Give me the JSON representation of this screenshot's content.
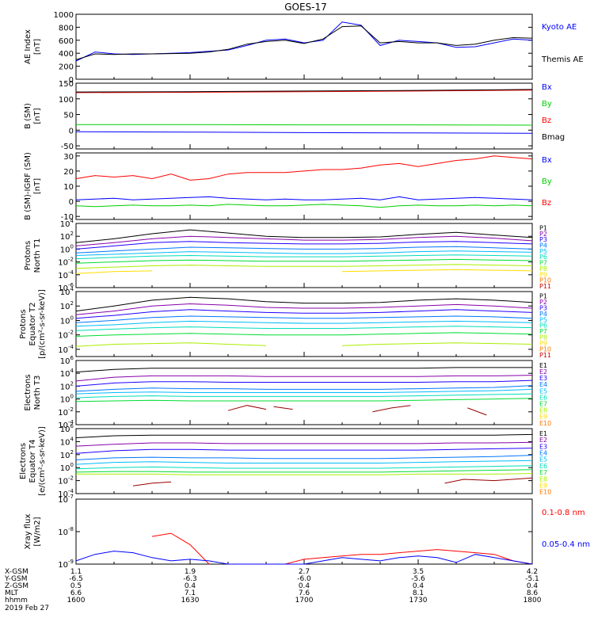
{
  "title": "GOES-17",
  "date": "2019 Feb 27",
  "footer": {
    "row_labels": [
      "X-GSM",
      "Y-GSM",
      "Z-GSM",
      "MLT",
      "hhmm"
    ],
    "columns": [
      [
        "1.1",
        "-6.5",
        "0.5",
        "6.6",
        "1600"
      ],
      [
        "1.9",
        "-6.3",
        "0.4",
        "7.1",
        "1630"
      ],
      [
        "2.7",
        "-6.0",
        "0.4",
        "7.6",
        "1700"
      ],
      [
        "3.5",
        "-5.6",
        "0.4",
        "8.1",
        "1730"
      ],
      [
        "4.2",
        "-5.1",
        "0.4",
        "8.6",
        "1800"
      ]
    ]
  },
  "colors": {
    "black": "#000000",
    "blue": "#0000ff",
    "green": "#00d000",
    "red": "#ff0000",
    "darkred": "#990000",
    "channels": [
      "#000000",
      "#8800aa",
      "#2200ff",
      "#0077ff",
      "#00bbff",
      "#00ddbb",
      "#00dd33",
      "#aaee00",
      "#ffdd00",
      "#ff7700",
      "#cc0000"
    ]
  },
  "chart_data": [
    {
      "type": "line",
      "ylabel": "AE Index\n[nT]",
      "ylim": [
        0,
        1000
      ],
      "yticks": [
        "0",
        "200",
        "400",
        "600",
        "800",
        "1000"
      ],
      "x": [
        1600,
        1605,
        1610,
        1615,
        1620,
        1625,
        1630,
        1635,
        1640,
        1645,
        1650,
        1655,
        1700,
        1705,
        1710,
        1715,
        1720,
        1725,
        1730,
        1735,
        1740,
        1745,
        1750,
        1755,
        1800
      ],
      "series": [
        {
          "name": "Kyoto AE",
          "color": "blue",
          "values": [
            280,
            420,
            390,
            380,
            390,
            400,
            410,
            430,
            450,
            520,
            600,
            620,
            560,
            600,
            880,
            830,
            520,
            600,
            580,
            560,
            490,
            500,
            560,
            620,
            600
          ]
        },
        {
          "name": "Themis AE",
          "color": "black",
          "values": [
            300,
            390,
            380,
            390,
            390,
            395,
            400,
            420,
            460,
            540,
            580,
            600,
            550,
            620,
            810,
            820,
            560,
            580,
            560,
            560,
            520,
            540,
            600,
            640,
            630
          ]
        }
      ]
    },
    {
      "type": "line",
      "ylabel": "B (SM)\n[nT]",
      "ylim": [
        -60,
        150
      ],
      "yticks": [
        "-50",
        "0",
        "50",
        "100",
        "150"
      ],
      "x": [
        1600,
        1630,
        1700,
        1730,
        1800
      ],
      "series": [
        {
          "name": "Bx",
          "color": "blue",
          "values": [
            -5,
            -6,
            -8,
            -9,
            -10
          ]
        },
        {
          "name": "By",
          "color": "green",
          "values": [
            18,
            18,
            17,
            17,
            16
          ]
        },
        {
          "name": "Bz",
          "color": "red",
          "values": [
            120,
            121,
            123,
            125,
            128
          ]
        },
        {
          "name": "Bmag",
          "color": "black",
          "values": [
            122,
            123,
            125,
            127,
            130
          ]
        }
      ]
    },
    {
      "type": "line",
      "ylabel": "B (SM)-IGRF (SM)\n[nT]",
      "ylim": [
        -12,
        32
      ],
      "yticks": [
        "-10",
        "0",
        "10",
        "20",
        "30"
      ],
      "x": [
        1600,
        1605,
        1610,
        1615,
        1620,
        1625,
        1630,
        1635,
        1640,
        1645,
        1650,
        1655,
        1700,
        1705,
        1710,
        1715,
        1720,
        1725,
        1730,
        1735,
        1740,
        1745,
        1750,
        1755,
        1800
      ],
      "series": [
        {
          "name": "Bx",
          "color": "blue",
          "values": [
            1,
            1.5,
            2,
            1,
            1.5,
            2,
            2.5,
            3,
            2,
            1.5,
            1,
            1.5,
            1,
            1,
            1.5,
            2,
            1,
            3,
            1,
            1.5,
            2,
            2.5,
            2,
            1.5,
            1
          ]
        },
        {
          "name": "By",
          "color": "green",
          "values": [
            -3,
            -3.5,
            -3,
            -2.5,
            -3,
            -3,
            -2.5,
            -3,
            -2,
            -2.5,
            -3,
            -3,
            -2.5,
            -2,
            -2.5,
            -3,
            -4,
            -3,
            -2.5,
            -3,
            -3,
            -2.5,
            -3,
            -2.5,
            -3
          ]
        },
        {
          "name": "Bz",
          "color": "red",
          "values": [
            15,
            17,
            16,
            17,
            15,
            18,
            14,
            15,
            18,
            19,
            19,
            19,
            20,
            21,
            21,
            22,
            24,
            25,
            23,
            25,
            27,
            28,
            30,
            29,
            28
          ]
        }
      ]
    },
    {
      "type": "line",
      "log": true,
      "ylabel": "Protons\nNorth T1",
      "ylim_exp": [
        -6,
        4
      ],
      "ytick_exps": [
        -6,
        -4,
        -2,
        0,
        2,
        4
      ],
      "x": [
        1600,
        1610,
        1620,
        1630,
        1640,
        1650,
        1700,
        1710,
        1720,
        1730,
        1740,
        1750,
        1800
      ],
      "legend": [
        "P1",
        "P2",
        "P3",
        "P4",
        "P5",
        "P6",
        "P7",
        "P8",
        "P9",
        "P10",
        "P11"
      ],
      "series_log": [
        [
          1.0,
          1.6,
          2.4,
          3.0,
          2.5,
          2.0,
          1.8,
          1.8,
          1.9,
          2.3,
          2.6,
          2.2,
          1.8
        ],
        [
          0.5,
          1.0,
          1.6,
          2.0,
          1.8,
          1.6,
          1.4,
          1.4,
          1.5,
          1.8,
          2.0,
          1.7,
          1.3
        ],
        [
          0.0,
          0.5,
          1.0,
          1.2,
          1.0,
          0.9,
          0.8,
          0.8,
          0.9,
          1.1,
          1.2,
          1.0,
          0.8
        ],
        [
          -0.6,
          -0.3,
          0.0,
          0.3,
          0.2,
          0.1,
          0.0,
          0.0,
          0.1,
          0.3,
          0.4,
          0.2,
          0.0
        ],
        [
          -1.0,
          -0.8,
          -0.6,
          -0.4,
          -0.5,
          -0.6,
          -0.7,
          -0.7,
          -0.6,
          -0.4,
          -0.3,
          -0.4,
          -0.5
        ],
        [
          -1.5,
          -1.3,
          -1.1,
          -1.0,
          -1.1,
          -1.2,
          -1.2,
          -1.2,
          -1.1,
          -1.0,
          -0.9,
          -1.0,
          -1.1
        ],
        [
          -2.2,
          -2.0,
          -1.8,
          -1.7,
          -1.8,
          -1.9,
          -1.9,
          -1.9,
          -1.8,
          -1.7,
          -1.6,
          -1.7,
          -1.8
        ],
        [
          -3.0,
          -2.8,
          -2.6,
          -2.5,
          -2.6,
          -2.7,
          -2.7,
          -2.7,
          -2.6,
          -2.5,
          -2.4,
          -2.5,
          -2.6
        ],
        [
          -3.8,
          -3.5,
          -3.4,
          null,
          null,
          null,
          null,
          -3.5,
          -3.4,
          -3.3,
          -3.2,
          -3.3,
          -3.4
        ]
      ]
    },
    {
      "type": "line",
      "log": true,
      "ylabel": "Protons\nEquator T2\n[p/(cm²-s-sr-keV)]",
      "ylim_exp": [
        -5,
        4
      ],
      "ytick_exps": [
        -4,
        -2,
        0,
        2,
        4
      ],
      "x": [
        1600,
        1610,
        1620,
        1630,
        1640,
        1650,
        1700,
        1710,
        1720,
        1730,
        1740,
        1750,
        1800
      ],
      "legend": [
        "P1",
        "P2",
        "P3",
        "P4",
        "P5",
        "P6",
        "P7",
        "P8",
        "P9",
        "P10",
        "P11"
      ],
      "series_log": [
        [
          1.3,
          2.0,
          2.8,
          3.2,
          3.0,
          2.6,
          2.4,
          2.4,
          2.5,
          2.8,
          3.0,
          2.8,
          2.5
        ],
        [
          0.8,
          1.3,
          2.0,
          2.3,
          2.1,
          1.8,
          1.7,
          1.7,
          1.8,
          2.0,
          2.2,
          2.0,
          1.7
        ],
        [
          0.3,
          0.7,
          1.2,
          1.5,
          1.3,
          1.1,
          1.0,
          1.0,
          1.1,
          1.3,
          1.5,
          1.3,
          1.1
        ],
        [
          -0.3,
          0.0,
          0.4,
          0.6,
          0.5,
          0.4,
          0.3,
          0.3,
          0.4,
          0.5,
          0.6,
          0.5,
          0.3
        ],
        [
          -0.8,
          -0.6,
          -0.3,
          -0.1,
          -0.2,
          -0.3,
          -0.4,
          -0.4,
          -0.3,
          -0.2,
          -0.1,
          -0.2,
          -0.3
        ],
        [
          -1.4,
          -1.2,
          -1.0,
          -0.9,
          -1.0,
          -1.1,
          -1.1,
          -1.1,
          -1.0,
          -0.9,
          -0.8,
          -0.9,
          -1.0
        ],
        [
          -2.2,
          -2.0,
          -1.9,
          -1.8,
          -1.9,
          -2.0,
          -2.0,
          -2.0,
          -1.9,
          -1.8,
          -1.7,
          -1.8,
          -1.9
        ],
        [
          -3.6,
          -3.3,
          -3.2,
          -3.1,
          -3.3,
          -3.5,
          null,
          -3.5,
          -3.3,
          -3.2,
          -3.1,
          -3.2,
          -3.3
        ]
      ]
    },
    {
      "type": "line",
      "log": true,
      "ylabel": "Electrons\nNorth T3",
      "ylim_exp": [
        -4,
        6
      ],
      "ytick_exps": [
        -4,
        -2,
        0,
        2,
        4,
        6
      ],
      "x": [
        1600,
        1610,
        1620,
        1630,
        1640,
        1650,
        1700,
        1710,
        1720,
        1730,
        1740,
        1750,
        1800
      ],
      "legend": [
        "E1",
        "E2",
        "E3",
        "E4",
        "E5",
        "E6",
        "E7",
        "E8",
        "E9",
        "E10"
      ],
      "series_log": [
        [
          4.2,
          4.6,
          4.8,
          4.8,
          4.8,
          4.8,
          4.8,
          4.8,
          4.8,
          4.8,
          4.9,
          4.9,
          4.9
        ],
        [
          2.8,
          3.4,
          3.6,
          3.6,
          3.6,
          3.5,
          3.5,
          3.5,
          3.5,
          3.5,
          3.6,
          3.6,
          3.7
        ],
        [
          2.0,
          2.5,
          2.7,
          2.7,
          2.6,
          2.6,
          2.6,
          2.6,
          2.6,
          2.6,
          2.7,
          2.7,
          2.9
        ],
        [
          1.2,
          1.5,
          1.7,
          1.6,
          1.6,
          1.5,
          1.5,
          1.5,
          1.5,
          1.6,
          1.7,
          1.8,
          2.1
        ],
        [
          0.8,
          1.0,
          1.1,
          1.0,
          1.0,
          1.0,
          1.0,
          1.0,
          1.0,
          1.1,
          1.2,
          1.3,
          1.5
        ],
        [
          0.2,
          0.4,
          0.5,
          0.4,
          0.4,
          0.4,
          0.4,
          0.4,
          0.4,
          0.5,
          0.6,
          0.7,
          0.8
        ],
        [
          -0.4,
          -0.3,
          -0.2,
          -0.3,
          -0.3,
          -0.3,
          -0.3,
          -0.3,
          -0.3,
          -0.2,
          -0.1,
          0.0,
          0.1
        ]
      ],
      "red_fragments": [
        [
          [
            1640,
            -1.8
          ],
          [
            1645,
            -1.0
          ],
          [
            1650,
            -1.6
          ]
        ],
        [
          [
            1652,
            -1.2
          ],
          [
            1657,
            -1.6
          ]
        ],
        [
          [
            1718,
            -2.0
          ],
          [
            1723,
            -1.4
          ],
          [
            1728,
            -1.0
          ]
        ],
        [
          [
            1743,
            -1.4
          ],
          [
            1748,
            -2.5
          ]
        ]
      ]
    },
    {
      "type": "line",
      "log": true,
      "ylabel": "Electrons\nEquator T4\n[e/(cm²-s-sr-keV)]",
      "ylim_exp": [
        -4,
        6
      ],
      "ytick_exps": [
        -4,
        -2,
        0,
        2,
        4,
        6
      ],
      "x": [
        1600,
        1610,
        1620,
        1630,
        1640,
        1650,
        1700,
        1710,
        1720,
        1730,
        1740,
        1750,
        1800
      ],
      "legend": [
        "E1",
        "E2",
        "E3",
        "E4",
        "E5",
        "E6",
        "E7",
        "E8",
        "E9",
        "E10"
      ],
      "series_log": [
        [
          4.6,
          4.9,
          5.0,
          5.0,
          5.0,
          5.0,
          5.0,
          5.0,
          5.0,
          5.0,
          5.0,
          5.0,
          5.1
        ],
        [
          3.3,
          3.6,
          3.8,
          3.8,
          3.7,
          3.7,
          3.7,
          3.7,
          3.7,
          3.7,
          3.8,
          3.8,
          3.9
        ],
        [
          2.2,
          2.6,
          2.8,
          2.8,
          2.7,
          2.7,
          2.7,
          2.7,
          2.7,
          2.7,
          2.8,
          2.9,
          3.0
        ],
        [
          1.2,
          1.5,
          1.6,
          1.5,
          1.5,
          1.4,
          1.4,
          1.4,
          1.4,
          1.5,
          1.6,
          1.7,
          1.9
        ],
        [
          0.5,
          0.8,
          0.9,
          0.8,
          0.7,
          0.7,
          0.7,
          0.7,
          0.7,
          0.8,
          0.9,
          1.0,
          1.1
        ],
        [
          -0.2,
          0.0,
          0.1,
          0.0,
          -0.1,
          -0.1,
          -0.1,
          -0.1,
          -0.1,
          0.0,
          0.1,
          0.2,
          0.3
        ],
        [
          -0.7,
          -0.6,
          -0.6,
          -0.7,
          -0.7,
          -0.7,
          -0.7,
          -0.7,
          -0.7,
          -0.6,
          -0.5,
          -0.4,
          -0.3
        ],
        [
          -1.0,
          -1.0,
          -1.0,
          -1.1,
          -1.1,
          -1.1,
          -1.1,
          -1.1,
          -1.1,
          -1.0,
          -1.0,
          -1.0,
          -0.9
        ]
      ],
      "red_fragments": [
        [
          [
            1615,
            -2.8
          ],
          [
            1620,
            -2.4
          ],
          [
            1625,
            -2.2
          ]
        ],
        [
          [
            1737,
            -2.4
          ],
          [
            1742,
            -1.8
          ],
          [
            1750,
            -2.0
          ],
          [
            1800,
            -1.6
          ]
        ]
      ]
    },
    {
      "type": "line",
      "log": true,
      "ylabel": "Xray flux\n[W/m2]",
      "ylim_exp": [
        -9,
        -7
      ],
      "ytick_exps": [
        -9,
        -8,
        -7
      ],
      "x": [
        1600,
        1605,
        1610,
        1615,
        1620,
        1625,
        1630,
        1635,
        1640,
        1645,
        1650,
        1655,
        1700,
        1705,
        1710,
        1715,
        1720,
        1725,
        1730,
        1735,
        1740,
        1745,
        1750,
        1755,
        1800
      ],
      "series": [
        {
          "name": "0.1-0.8 nm",
          "color": "red",
          "log_values": [
            null,
            null,
            null,
            null,
            -8.15,
            -8.05,
            -8.4,
            -9.1,
            null,
            null,
            null,
            -9.2,
            -8.85,
            -8.8,
            -8.75,
            -8.7,
            -8.7,
            -8.65,
            -8.6,
            -8.55,
            -8.6,
            -8.65,
            -8.7,
            -8.9,
            -9.0
          ]
        },
        {
          "name": "0.05-0.4 nm",
          "color": "blue",
          "log_values": [
            -8.9,
            -8.7,
            -8.6,
            -8.65,
            -8.8,
            -8.9,
            -8.85,
            -8.9,
            -9.05,
            -9.1,
            -9.0,
            -9.0,
            -9.05,
            -8.9,
            -8.8,
            -8.85,
            -8.9,
            -8.8,
            -8.75,
            -8.8,
            -8.95,
            -8.7,
            -8.8,
            -8.9,
            -9.0
          ]
        }
      ]
    }
  ],
  "legends": {
    "ae": [
      {
        "label": "Kyoto AE",
        "color": "blue"
      },
      {
        "label": "Themis AE",
        "color": "black"
      }
    ],
    "bsm": [
      {
        "label": "Bx",
        "color": "blue"
      },
      {
        "label": "By",
        "color": "green"
      },
      {
        "label": "Bz",
        "color": "red"
      },
      {
        "label": "Bmag",
        "color": "black"
      }
    ],
    "bigrf": [
      {
        "label": "Bx",
        "color": "blue"
      },
      {
        "label": "By",
        "color": "green"
      },
      {
        "label": "Bz",
        "color": "red"
      }
    ],
    "xray": [
      {
        "label": "0.1-0.8 nm",
        "color": "red"
      },
      {
        "label": "0.05-0.4 nm",
        "color": "blue"
      }
    ]
  }
}
